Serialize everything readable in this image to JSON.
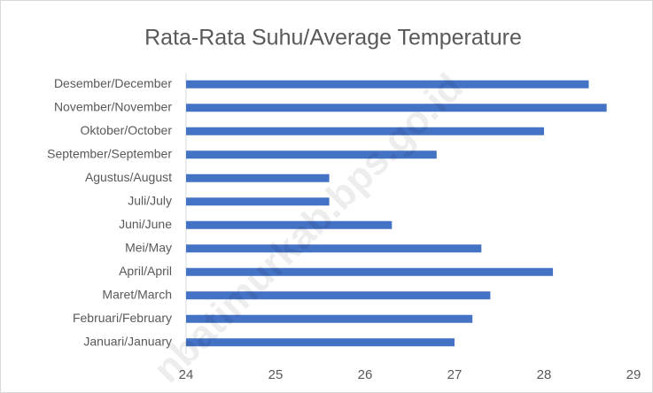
{
  "chart_data": {
    "type": "bar",
    "orientation": "horizontal",
    "title": "Rata-Rata Suhu/Average Temperature",
    "watermark": "nbatimurkab.bps.go.id",
    "categories": [
      "Januari/January",
      "Februari/February",
      "Maret/March",
      "April/April",
      "Mei/May",
      "Juni/June",
      "Juli/July",
      "Agustus/August",
      "September/September",
      "Oktober/October",
      "November/November",
      "Desember/December"
    ],
    "values": [
      27.0,
      27.2,
      27.4,
      28.1,
      27.3,
      26.3,
      25.6,
      25.6,
      26.8,
      28.0,
      28.7,
      28.5
    ],
    "color": "#4472c4",
    "xlim": [
      24,
      29
    ],
    "xticks": [
      24,
      25,
      26,
      27,
      28,
      29
    ],
    "grid": false
  }
}
